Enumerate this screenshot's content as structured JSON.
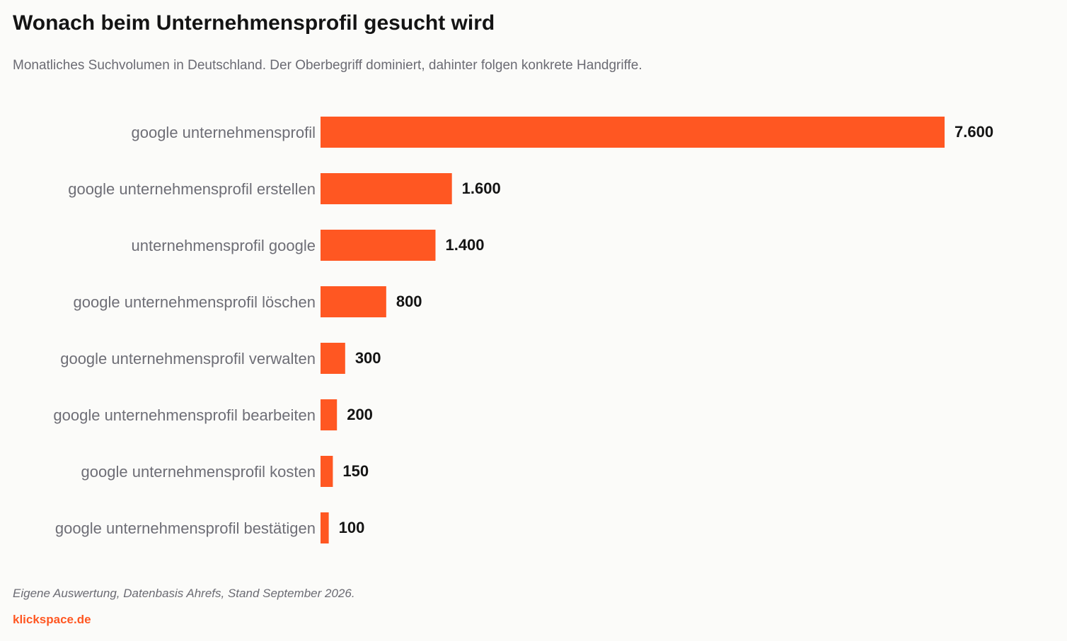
{
  "title": "Wonach beim Unternehmensprofil gesucht wird",
  "subtitle": "Monatliches Suchvolumen in Deutschland. Der Oberbegriff dominiert, dahinter folgen konkrete Handgriffe.",
  "source": "Eigene Auswertung, Datenbasis Ahrefs, Stand September 2026.",
  "brand": "klickspace.de",
  "colors": {
    "bar": "#ff5722",
    "brand": "#ff5722",
    "background": "#fbfbf9"
  },
  "chart_data": {
    "type": "bar",
    "orientation": "horizontal",
    "categories": [
      "google unternehmensprofil",
      "google unternehmensprofil erstellen",
      "unternehmensprofil google",
      "google unternehmensprofil löschen",
      "google unternehmensprofil verwalten",
      "google unternehmensprofil bearbeiten",
      "google unternehmensprofil kosten",
      "google unternehmensprofil bestätigen"
    ],
    "values": [
      7600,
      1600,
      1400,
      800,
      300,
      200,
      150,
      100
    ],
    "value_labels": [
      "7.600",
      "1.600",
      "1.400",
      "800",
      "300",
      "200",
      "150",
      "100"
    ],
    "title": "Wonach beim Unternehmensprofil gesucht wird",
    "xlabel": "",
    "ylabel": "",
    "xlim": [
      0,
      7600
    ],
    "grid": false,
    "legend": "none"
  }
}
